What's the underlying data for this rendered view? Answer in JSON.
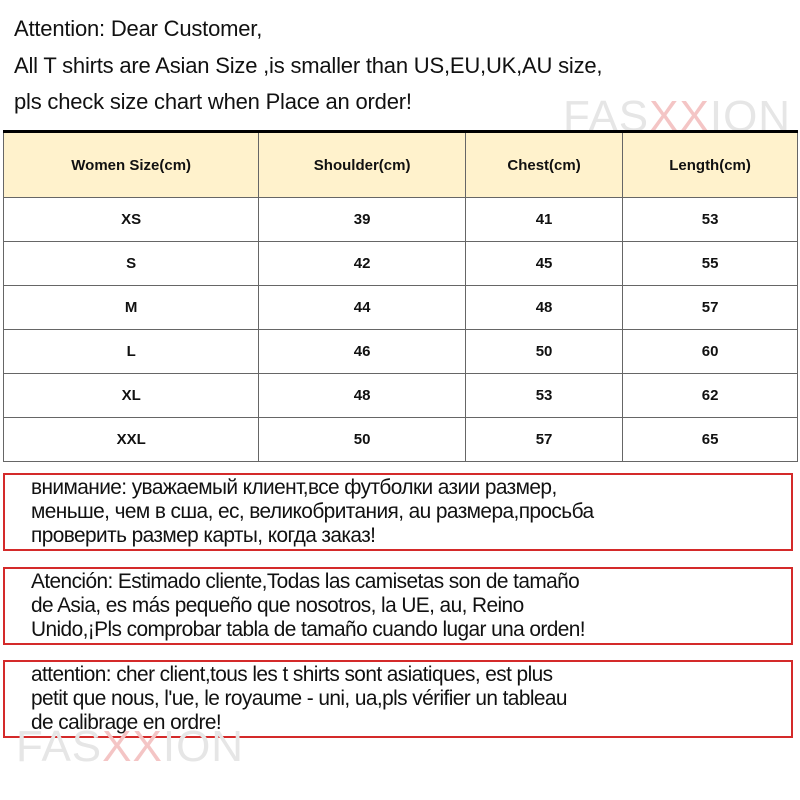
{
  "notice": {
    "lines": [
      "Attention: Dear Customer,",
      "All T shirts are  Asian Size ,is smaller than US,EU,UK,AU size,",
      "pls check size chart when Place an order!"
    ]
  },
  "watermark": {
    "pre": "FAS",
    "mid": "XX",
    "post": "ION"
  },
  "size_table": {
    "headers": [
      "Women Size(cm)",
      "Shoulder(cm)",
      "Chest(cm)",
      "Length(cm)"
    ],
    "rows": [
      [
        "XS",
        "39",
        "41",
        "53"
      ],
      [
        "S",
        "42",
        "45",
        "55"
      ],
      [
        "M",
        "44",
        "48",
        "57"
      ],
      [
        "L",
        "46",
        "50",
        "60"
      ],
      [
        "XL",
        "48",
        "53",
        "62"
      ],
      [
        "XXL",
        "50",
        "57",
        "65"
      ]
    ],
    "header_color": "#fff2cc"
  },
  "translations": [
    {
      "lang": "ru",
      "lines": [
        "внимание: уважаемый клиент,все футболки азии размер,",
        "меньше, чем в сша, ес, великобритания, au размера,просьба",
        "проверить размер карты, когда заказ!"
      ]
    },
    {
      "lang": "es",
      "lines": [
        "Atención: Estimado cliente,Todas las camisetas son de tamaño",
        "de Asia, es más pequeño que nosotros, la UE, au, Reino",
        "Unido,¡Pls comprobar tabla de tamaño cuando lugar una orden!"
      ]
    },
    {
      "lang": "fr",
      "lines": [
        "attention: cher client,tous les t shirts sont asiatiques, est plus",
        "petit que nous, l'ue, le royaume - uni, ua,pls vérifier un tableau",
        "de calibrage en ordre!"
      ]
    }
  ],
  "colors": {
    "box_border": "#d42a2a"
  }
}
